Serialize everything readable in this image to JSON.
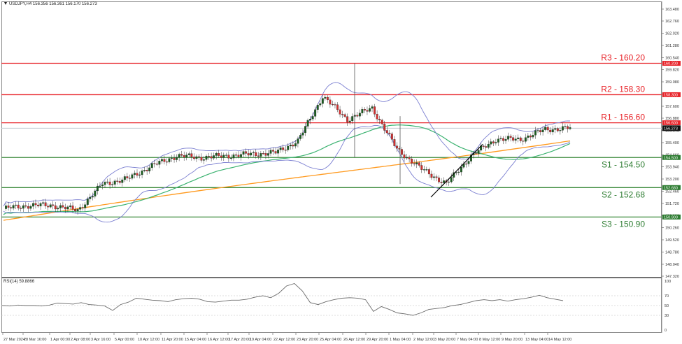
{
  "header": {
    "symbol": "USDJPY,H4",
    "ohlc": "156.356 156.361 156.170 156.273",
    "title_text": "USDJPY,H4  156.356 156.361 156.170 156.273"
  },
  "rsi_panel": {
    "title": "RSI(14) 59.8866",
    "levels": [
      "100",
      "70",
      "50",
      "30",
      "0"
    ]
  },
  "current_price_label": "156.273",
  "colors": {
    "resistance": "#e8242a",
    "support": "#2e7d32",
    "support_line": "#3a8a3a",
    "bull_candle": "#1b5e20",
    "bear_candle": "#d32f2f",
    "bollinger": "#7b7fd1",
    "ma_green": "#3cb371",
    "ma_orange": "#ff9a1f",
    "rsi_line": "#6b6b6b",
    "trendline": "#000000",
    "current_price_bg": "#111111"
  },
  "chart_data": {
    "type": "candlestick",
    "title": "USDJPY,H4",
    "subtitle": "156.356 156.361 156.170 156.273",
    "y_axis": {
      "range": [
        147.32,
        163.48
      ],
      "tick_labels": [
        "163.480",
        "162.760",
        "162.020",
        "161.280",
        "160.540",
        "159.820",
        "159.080",
        "158.340",
        "157.600",
        "156.880",
        "156.140",
        "155.400",
        "154.660",
        "153.940",
        "153.200",
        "152.460",
        "151.720",
        "150.980",
        "150.260",
        "149.520",
        "148.780",
        "148.040",
        "147.320"
      ]
    },
    "x_axis": {
      "tick_labels": [
        "27 Mar 2024",
        "28 Mar 16:00",
        "1 Apr 00:00",
        "2 Apr 08:00",
        "3 Apr 16:00",
        "5 Apr 00:00",
        "10 Apr 12:00",
        "11 Apr 20:00",
        "15 Apr 04:00",
        "16 Apr 12:00",
        "17 Apr 20:00",
        "19 Apr 04:00",
        "22 Apr 12:00",
        "23 Apr 20:00",
        "25 Apr 04:00",
        "26 Apr 12:00",
        "29 Apr 20:00",
        "1 May 04:00",
        "2 May 12:00",
        "3 May 20:00",
        "7 May 04:00",
        "8 May 12:00",
        "9 May 20:00",
        "13 May 04:00",
        "14 May 12:00"
      ]
    },
    "horizontal_levels": [
      {
        "name": "R3",
        "label": "R3 - 160.20",
        "value": 160.2,
        "tag": "160.200",
        "type": "resistance"
      },
      {
        "name": "R2",
        "label": "R2 - 158.30",
        "value": 158.3,
        "tag": "158.300",
        "type": "resistance"
      },
      {
        "name": "R1",
        "label": "R1 - 156.60",
        "value": 156.6,
        "tag": "156.600",
        "type": "resistance"
      },
      {
        "name": "S1",
        "label": "S1 - 154.50",
        "value": 154.5,
        "tag": "154.500",
        "type": "support"
      },
      {
        "name": "S2",
        "label": "S2 - 152.68",
        "value": 152.68,
        "tag": "152.680",
        "type": "support"
      },
      {
        "name": "S3",
        "label": "S3 - 150.90",
        "value": 150.9,
        "tag": "150.900",
        "type": "support"
      }
    ],
    "current_price": 156.273,
    "close_series_approx": [
      {
        "x": "27 Mar 2024",
        "close": 151.4
      },
      {
        "x": "1 Apr 00:00",
        "close": 151.6
      },
      {
        "x": "3 Apr 16:00",
        "close": 151.6
      },
      {
        "x": "5 Apr 00:00",
        "close": 151.3
      },
      {
        "x": "10 Apr 12:00",
        "close": 152.9
      },
      {
        "x": "11 Apr 20:00",
        "close": 153.2
      },
      {
        "x": "15 Apr 04:00",
        "close": 154.0
      },
      {
        "x": "16 Apr 12:00",
        "close": 154.6
      },
      {
        "x": "17 Apr 20:00",
        "close": 154.5
      },
      {
        "x": "19 Apr 04:00",
        "close": 154.6
      },
      {
        "x": "22 Apr 12:00",
        "close": 154.7
      },
      {
        "x": "23 Apr 20:00",
        "close": 154.8
      },
      {
        "x": "25 Apr 04:00",
        "close": 155.5
      },
      {
        "x": "26 Apr 12:00",
        "close": 158.2
      },
      {
        "x": "29 Apr 20:00",
        "close": 156.8
      },
      {
        "x": "1 May 04:00",
        "close": 157.5
      },
      {
        "x": "1 May 20:00",
        "close": 155.0
      },
      {
        "x": "2 May 12:00",
        "close": 153.8
      },
      {
        "x": "3 May 20:00",
        "close": 152.9
      },
      {
        "x": "7 May 04:00",
        "close": 154.6
      },
      {
        "x": "8 May 12:00",
        "close": 155.6
      },
      {
        "x": "9 May 20:00",
        "close": 155.6
      },
      {
        "x": "13 May 04:00",
        "close": 156.2
      },
      {
        "x": "14 May 12:00",
        "close": 156.273
      }
    ],
    "indicators": [
      "Bollinger Bands",
      "Moving Average (green)",
      "Moving Average (orange)",
      "RSI(14)"
    ],
    "rsi": {
      "title": "RSI(14) 59.8866",
      "last_value": 59.8866,
      "range": [
        0,
        100
      ],
      "levels": [
        70,
        50,
        30
      ],
      "values_approx": [
        50,
        49,
        51,
        50,
        50,
        49,
        51,
        55,
        54,
        53,
        56,
        52,
        51,
        49,
        40,
        52,
        57,
        65,
        63,
        61,
        60,
        58,
        62,
        64,
        65,
        63,
        58,
        57,
        59,
        61,
        61,
        63,
        67,
        70,
        66,
        75,
        90,
        95,
        80,
        56,
        52,
        58,
        62,
        65,
        66,
        65,
        62,
        38,
        48,
        42,
        35,
        33,
        30,
        35,
        42,
        44,
        46,
        50,
        52,
        56,
        60,
        62,
        60,
        62,
        59,
        62,
        64,
        67,
        71,
        66,
        63,
        60
      ]
    },
    "annotations": [
      "trendline from ~3 May lows (~152.0) rising to ~155.8"
    ]
  }
}
